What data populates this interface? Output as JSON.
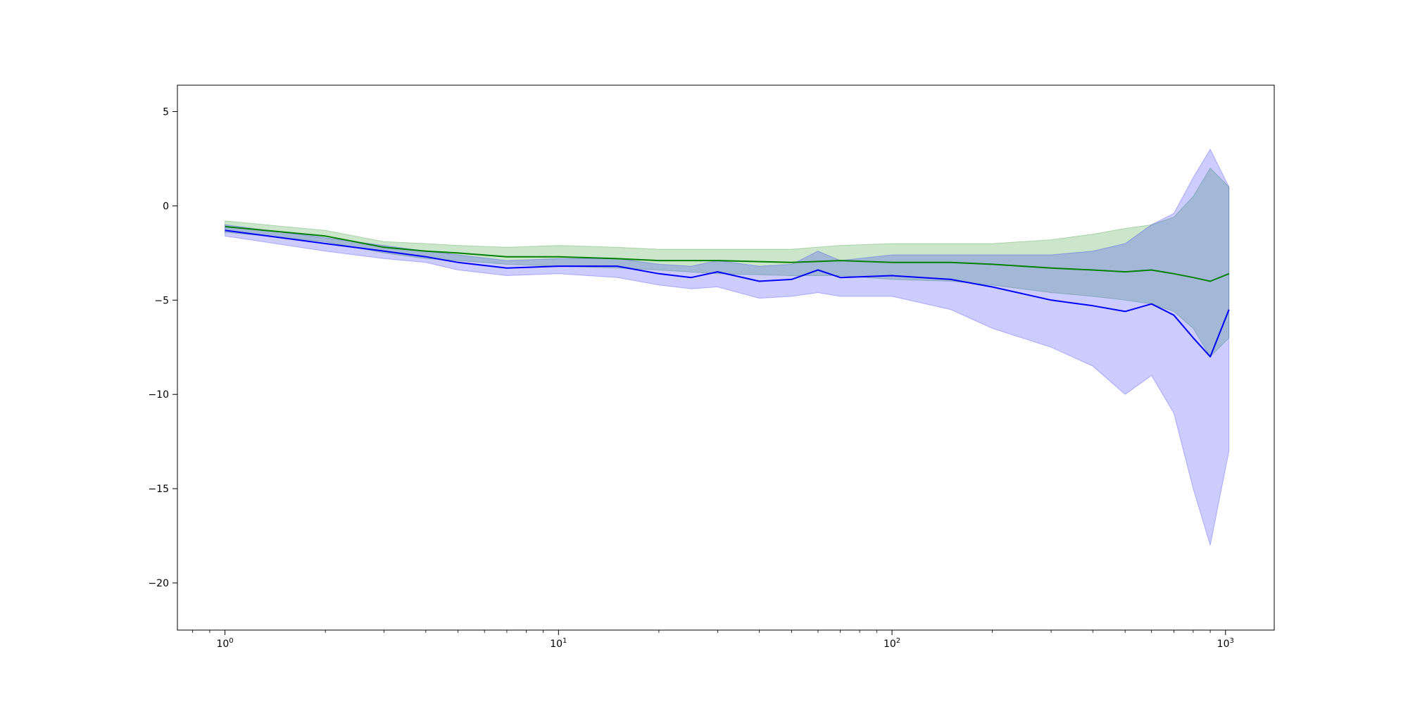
{
  "chart_data": {
    "type": "line",
    "title": "",
    "xlabel": "",
    "ylabel": "",
    "xscale": "log",
    "xlim": [
      0.72,
      1400
    ],
    "ylim": [
      -22.5,
      6.4
    ],
    "grid": false,
    "legend": null,
    "x_ticks": [
      {
        "base": "10",
        "exp": "0",
        "value": 1
      },
      {
        "base": "10",
        "exp": "1",
        "value": 10
      },
      {
        "base": "10",
        "exp": "2",
        "value": 100
      },
      {
        "base": "10",
        "exp": "3",
        "value": 1000
      }
    ],
    "y_ticks": [
      {
        "label": "5",
        "value": 5
      },
      {
        "label": "0",
        "value": 0
      },
      {
        "label": "−5",
        "value": -5
      },
      {
        "label": "−10",
        "value": -10
      },
      {
        "label": "−15",
        "value": -15
      },
      {
        "label": "−20",
        "value": -20
      }
    ],
    "series": [
      {
        "color": "#008000",
        "band_color": "#008000",
        "x": [
          1,
          2,
          3,
          4,
          5,
          7,
          10,
          15,
          20,
          30,
          50,
          70,
          100,
          150,
          200,
          300,
          400,
          500,
          600,
          700,
          800,
          900,
          1024
        ],
        "y": [
          -1.1,
          -1.6,
          -2.2,
          -2.4,
          -2.5,
          -2.7,
          -2.7,
          -2.8,
          -2.9,
          -2.9,
          -3.0,
          -2.9,
          -3.0,
          -3.0,
          -3.1,
          -3.3,
          -3.4,
          -3.5,
          -3.4,
          -3.6,
          -3.8,
          -4.0,
          -3.6
        ],
        "lower": [
          -1.4,
          -1.9,
          -2.5,
          -2.8,
          -2.9,
          -3.1,
          -3.2,
          -3.3,
          -3.4,
          -3.6,
          -3.7,
          -3.7,
          -3.9,
          -4.0,
          -4.2,
          -4.6,
          -4.8,
          -5.0,
          -5.2,
          -5.6,
          -6.5,
          -8.0,
          -7.0
        ],
        "upper": [
          -0.8,
          -1.3,
          -1.9,
          -2.0,
          -2.1,
          -2.2,
          -2.1,
          -2.2,
          -2.3,
          -2.3,
          -2.3,
          -2.1,
          -2.0,
          -2.0,
          -2.0,
          -1.8,
          -1.5,
          -1.2,
          -1.0,
          -0.6,
          0.5,
          2.0,
          1.0
        ]
      },
      {
        "color": "#0000ff",
        "band_color": "#0000ff",
        "x": [
          1,
          2,
          3,
          4,
          5,
          7,
          10,
          15,
          20,
          25,
          30,
          40,
          50,
          60,
          70,
          100,
          150,
          200,
          300,
          400,
          500,
          600,
          700,
          800,
          900,
          1024
        ],
        "y": [
          -1.3,
          -2.0,
          -2.4,
          -2.7,
          -3.0,
          -3.3,
          -3.2,
          -3.2,
          -3.6,
          -3.8,
          -3.5,
          -4.0,
          -3.9,
          -3.4,
          -3.8,
          -3.7,
          -3.9,
          -4.3,
          -5.0,
          -5.3,
          -5.6,
          -5.2,
          -5.8,
          -7.0,
          -8.0,
          -5.5
        ],
        "lower": [
          -1.6,
          -2.4,
          -2.8,
          -3.0,
          -3.4,
          -3.7,
          -3.6,
          -3.8,
          -4.2,
          -4.4,
          -4.3,
          -4.9,
          -4.8,
          -4.6,
          -4.8,
          -4.8,
          -5.5,
          -6.5,
          -7.5,
          -8.5,
          -10.0,
          -9.0,
          -11.0,
          -15.0,
          -18.0,
          -13.0
        ],
        "upper": [
          -1.0,
          -1.7,
          -2.1,
          -2.4,
          -2.6,
          -2.9,
          -2.8,
          -2.8,
          -3.1,
          -3.2,
          -2.9,
          -3.2,
          -3.1,
          -2.4,
          -2.9,
          -2.6,
          -2.6,
          -2.6,
          -2.6,
          -2.4,
          -2.0,
          -1.0,
          -0.4,
          1.5,
          3.0,
          1.0
        ]
      }
    ]
  }
}
